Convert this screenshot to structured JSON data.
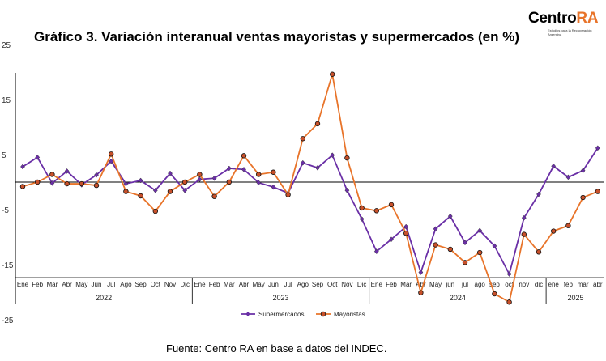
{
  "title": "Gráfico 3. Variación interanual ventas mayoristas y supermercados (en %)",
  "source": "Fuente: Centro RA en base a datos del INDEC.",
  "logo": {
    "name_part1": "Centro",
    "name_part2": "RA",
    "tagline": "Estudios para la Recuperación Argentina"
  },
  "colors": {
    "supermercados": "#6a2fa6",
    "mayoristas": "#e8742a",
    "marker_fill_mayoristas": "#c8502a"
  },
  "chart_data": {
    "type": "line",
    "title": "Gráfico 3. Variación interanual ventas mayoristas y supermercados (en %)",
    "xlabel": "",
    "ylabel": "",
    "ylim": [
      -25,
      30
    ],
    "yticks": [
      25,
      15,
      5,
      -5,
      -15,
      -25
    ],
    "grid": false,
    "legend_position": "bottom",
    "categories": [
      "Ene",
      "Feb",
      "Mar",
      "Abr",
      "May",
      "Jun",
      "Jul",
      "Ago",
      "Sep",
      "Oct",
      "Nov",
      "Dic",
      "Ene",
      "Feb",
      "Mar",
      "Abr",
      "May",
      "Jun",
      "Jul",
      "Ago",
      "Sep",
      "Oct",
      "Nov",
      "Dic",
      "Ene",
      "Feb",
      "Mar",
      "Abr",
      "May",
      "jun",
      "jul",
      "ago",
      "sep",
      "oct",
      "nov",
      "dic",
      "ene",
      "feb",
      "mar",
      "abr"
    ],
    "years": [
      {
        "label": "2022",
        "start": 0,
        "end": 11
      },
      {
        "label": "2023",
        "start": 12,
        "end": 23
      },
      {
        "label": "2024",
        "start": 24,
        "end": 35
      },
      {
        "label": "2025",
        "start": 36,
        "end": 39
      }
    ],
    "series": [
      {
        "name": "Supermercados",
        "values": [
          2.8,
          4.5,
          -0.2,
          2.0,
          -0.5,
          1.3,
          3.8,
          -0.3,
          0.3,
          -1.5,
          1.6,
          -1.5,
          0.5,
          0.7,
          2.5,
          2.3,
          -0.1,
          -0.9,
          -2.0,
          3.5,
          2.6,
          4.9,
          -1.5,
          -6.7,
          -12.6,
          -10.4,
          -8.1,
          -16.4,
          -8.5,
          -6.2,
          -11.0,
          -8.8,
          -11.6,
          -16.7,
          -6.5,
          -2.2,
          2.9,
          0.9,
          2.1,
          6.2
        ]
      },
      {
        "name": "Mayoristas",
        "values": [
          -0.8,
          0.0,
          1.4,
          -0.3,
          -0.3,
          -0.6,
          5.1,
          -1.7,
          -2.5,
          -5.3,
          -1.7,
          0.0,
          1.4,
          -2.6,
          0.0,
          4.8,
          1.4,
          1.8,
          -2.3,
          7.9,
          10.6,
          19.6,
          4.4,
          -4.7,
          -5.2,
          -4.1,
          -9.3,
          -20.1,
          -11.4,
          -12.2,
          -14.6,
          -12.8,
          -20.3,
          -21.8,
          -9.5,
          -12.7,
          -8.9,
          -7.9,
          -2.8,
          -1.7
        ]
      }
    ]
  }
}
